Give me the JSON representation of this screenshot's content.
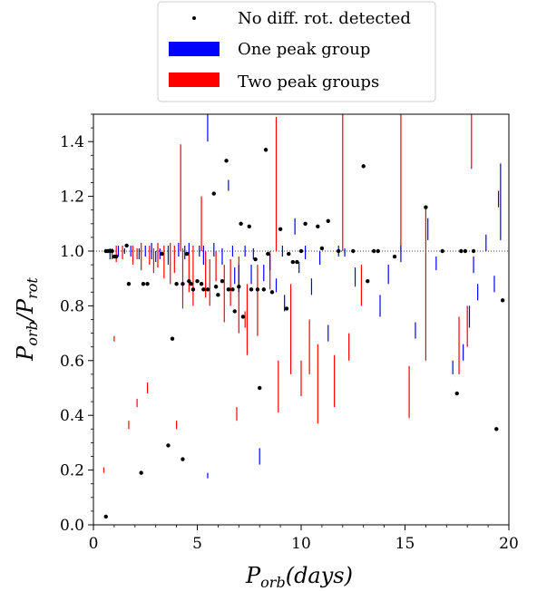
{
  "chart_data": {
    "type": "scatter",
    "title": "",
    "xlabel": "P_orb(days)",
    "ylabel": "P_orb/P_rot",
    "xlabel_parts": {
      "main": "P",
      "sub": "orb",
      "rest": "(days)"
    },
    "ylabel_parts": {
      "n_main": "P",
      "n_sub": "orb",
      "slash": "/",
      "d_main": "P",
      "d_sub": "rot"
    },
    "xlim": [
      0,
      20
    ],
    "ylim": [
      0,
      1.5
    ],
    "xticks": [
      0,
      5,
      10,
      15,
      20
    ],
    "xtick_labels": [
      "0",
      "5",
      "10",
      "15",
      "20"
    ],
    "yticks": [
      0.0,
      0.2,
      0.4,
      0.6,
      0.8,
      1.0,
      1.2,
      1.4
    ],
    "ytick_labels": [
      "0.0",
      "0.2",
      "0.4",
      "0.6",
      "0.8",
      "1.0",
      "1.2",
      "1.4"
    ],
    "reference_line_y": 1.0,
    "grid": false,
    "legend_position": "top-center",
    "colors": {
      "no_diff": "#000000",
      "one_peak": "#0000ff",
      "two_peak": "#ff0000"
    },
    "series": [
      {
        "name": "No diff. rot. detected",
        "kind": "points",
        "points": [
          [
            0.6,
            0.03
          ],
          [
            0.6,
            1.0
          ],
          [
            0.7,
            1.0
          ],
          [
            0.8,
            1.0
          ],
          [
            0.9,
            1.0
          ],
          [
            1.0,
            0.98
          ],
          [
            1.1,
            0.98
          ],
          [
            1.6,
            1.02
          ],
          [
            1.7,
            0.88
          ],
          [
            2.3,
            0.19
          ],
          [
            2.4,
            0.88
          ],
          [
            2.6,
            0.88
          ],
          [
            3.3,
            0.99
          ],
          [
            3.6,
            0.29
          ],
          [
            3.8,
            0.68
          ],
          [
            4.0,
            0.88
          ],
          [
            4.3,
            0.24
          ],
          [
            4.3,
            0.88
          ],
          [
            4.5,
            0.99
          ],
          [
            4.6,
            0.89
          ],
          [
            4.7,
            0.88
          ],
          [
            4.8,
            0.86
          ],
          [
            5.0,
            0.89
          ],
          [
            5.2,
            0.88
          ],
          [
            5.3,
            0.86
          ],
          [
            5.5,
            0.86
          ],
          [
            5.8,
            1.21
          ],
          [
            5.9,
            0.87
          ],
          [
            6.0,
            0.84
          ],
          [
            6.2,
            0.89
          ],
          [
            6.4,
            1.33
          ],
          [
            6.5,
            0.86
          ],
          [
            6.7,
            0.86
          ],
          [
            6.8,
            0.78
          ],
          [
            7.0,
            0.87
          ],
          [
            7.1,
            1.1
          ],
          [
            7.2,
            0.76
          ],
          [
            7.5,
            1.09
          ],
          [
            7.6,
            0.86
          ],
          [
            7.8,
            0.97
          ],
          [
            7.9,
            0.86
          ],
          [
            8.0,
            0.5
          ],
          [
            8.2,
            0.86
          ],
          [
            8.3,
            1.37
          ],
          [
            8.4,
            0.99
          ],
          [
            8.6,
            0.85
          ],
          [
            9.0,
            1.08
          ],
          [
            9.3,
            0.79
          ],
          [
            9.4,
            0.99
          ],
          [
            9.6,
            0.96
          ],
          [
            9.8,
            0.96
          ],
          [
            10.0,
            1.0
          ],
          [
            10.2,
            1.1
          ],
          [
            10.8,
            1.09
          ],
          [
            11.0,
            1.01
          ],
          [
            11.3,
            1.11
          ],
          [
            11.8,
            1.0
          ],
          [
            12.5,
            1.0
          ],
          [
            13.0,
            1.31
          ],
          [
            13.2,
            0.89
          ],
          [
            13.5,
            1.0
          ],
          [
            13.7,
            1.0
          ],
          [
            14.5,
            0.98
          ],
          [
            16.0,
            1.16
          ],
          [
            16.8,
            1.0
          ],
          [
            17.5,
            0.48
          ],
          [
            17.7,
            1.0
          ],
          [
            17.9,
            1.0
          ],
          [
            18.3,
            1.0
          ],
          [
            19.4,
            0.35
          ],
          [
            19.7,
            0.82
          ]
        ]
      },
      {
        "name": "One peak group",
        "kind": "vertical_segments",
        "segments": [
          [
            0.8,
            0.97,
            1.01
          ],
          [
            1.2,
            0.98,
            1.02
          ],
          [
            1.5,
            0.99,
            1.01
          ],
          [
            1.8,
            0.98,
            1.02
          ],
          [
            2.2,
            0.97,
            1.01
          ],
          [
            2.5,
            0.98,
            1.02
          ],
          [
            2.8,
            0.97,
            1.03
          ],
          [
            3.0,
            0.96,
            1.0
          ],
          [
            3.2,
            0.97,
            1.01
          ],
          [
            3.6,
            0.95,
            1.02
          ],
          [
            4.1,
            0.98,
            1.03
          ],
          [
            4.4,
            0.97,
            1.02
          ],
          [
            4.6,
            0.99,
            1.03
          ],
          [
            5.1,
            0.98,
            1.02
          ],
          [
            5.3,
            0.95,
            1.02
          ],
          [
            5.5,
            1.4,
            1.5
          ],
          [
            5.5,
            0.17,
            0.19
          ],
          [
            5.8,
            0.98,
            1.03
          ],
          [
            6.2,
            0.95,
            1.01
          ],
          [
            6.5,
            1.22,
            1.26
          ],
          [
            6.7,
            0.98,
            1.02
          ],
          [
            6.8,
            0.88,
            0.94
          ],
          [
            7.0,
            0.85,
            0.95
          ],
          [
            7.3,
            0.98,
            1.02
          ],
          [
            7.6,
            0.88,
            0.95
          ],
          [
            7.7,
            0.97,
            1.01
          ],
          [
            8.0,
            0.22,
            0.28
          ],
          [
            8.2,
            0.89,
            0.95
          ],
          [
            8.5,
            0.93,
            0.99
          ],
          [
            8.8,
            0.85,
            0.9
          ],
          [
            9.1,
            0.98,
            1.02
          ],
          [
            9.2,
            0.78,
            0.84
          ],
          [
            9.7,
            1.06,
            1.12
          ],
          [
            9.9,
            0.92,
            0.96
          ],
          [
            10.2,
            0.97,
            1.02
          ],
          [
            10.5,
            0.84,
            0.9
          ],
          [
            10.9,
            0.95,
            1.0
          ],
          [
            11.3,
            0.67,
            0.73
          ],
          [
            11.8,
            0.98,
            1.02
          ],
          [
            12.1,
            0.98,
            1.01
          ],
          [
            12.6,
            0.87,
            0.94
          ],
          [
            13.8,
            0.76,
            0.84
          ],
          [
            14.2,
            0.88,
            0.95
          ],
          [
            14.8,
            0.96,
            1.02
          ],
          [
            15.5,
            0.68,
            0.74
          ],
          [
            16.1,
            1.04,
            1.12
          ],
          [
            16.5,
            0.93,
            0.98
          ],
          [
            17.3,
            0.55,
            0.6
          ],
          [
            17.8,
            0.6,
            0.66
          ],
          [
            18.1,
            0.72,
            0.8
          ],
          [
            18.3,
            0.92,
            0.98
          ],
          [
            18.5,
            0.82,
            0.88
          ],
          [
            18.9,
            1.0,
            1.06
          ],
          [
            19.3,
            0.85,
            0.91
          ],
          [
            19.5,
            1.16,
            1.22
          ],
          [
            19.6,
            1.04,
            1.32
          ]
        ]
      },
      {
        "name": "Two peak groups",
        "kind": "vertical_segments",
        "segments": [
          [
            0.9,
            0.97,
            1.01
          ],
          [
            1.1,
            0.96,
            1.02
          ],
          [
            1.4,
            0.97,
            1.02
          ],
          [
            1.9,
            0.95,
            1.02
          ],
          [
            2.1,
            0.97,
            1.01
          ],
          [
            2.3,
            0.93,
            1.03
          ],
          [
            2.7,
            0.95,
            1.02
          ],
          [
            2.9,
            0.92,
            1.01
          ],
          [
            3.1,
            0.94,
            1.03
          ],
          [
            3.4,
            0.9,
            1.02
          ],
          [
            3.7,
            0.88,
            1.03
          ],
          [
            3.9,
            0.92,
            1.02
          ],
          [
            4.2,
            1.0,
            1.39
          ],
          [
            4.3,
            0.79,
            1.01
          ],
          [
            4.6,
            0.85,
            1.0
          ],
          [
            4.8,
            0.8,
            1.02
          ],
          [
            5.2,
            1.0,
            1.2
          ],
          [
            5.4,
            0.83,
            1.0
          ],
          [
            5.6,
            0.8,
            0.97
          ],
          [
            5.9,
            0.89,
            1.0
          ],
          [
            6.3,
            0.74,
            0.95
          ],
          [
            6.6,
            0.8,
            0.97
          ],
          [
            7.0,
            0.7,
            0.98
          ],
          [
            7.4,
            0.62,
            0.88
          ],
          [
            7.9,
            0.69,
            0.95
          ],
          [
            8.5,
            0.86,
            1.0
          ],
          [
            8.8,
            1.0,
            1.49
          ],
          [
            8.9,
            0.41,
            0.6
          ],
          [
            9.5,
            0.55,
            0.88
          ],
          [
            10.0,
            0.47,
            0.6
          ],
          [
            10.4,
            0.55,
            0.75
          ],
          [
            10.8,
            0.37,
            0.66
          ],
          [
            11.6,
            0.43,
            0.62
          ],
          [
            12.0,
            1.0,
            1.5
          ],
          [
            12.3,
            0.6,
            0.7
          ],
          [
            12.9,
            0.8,
            0.95
          ],
          [
            14.8,
            1.0,
            1.5
          ],
          [
            15.2,
            0.39,
            0.58
          ],
          [
            16.0,
            0.6,
            1.16
          ],
          [
            17.6,
            0.55,
            0.76
          ],
          [
            18.0,
            0.65,
            0.8
          ],
          [
            18.2,
            1.3,
            1.5
          ],
          [
            0.5,
            0.19,
            0.21
          ],
          [
            1.0,
            0.67,
            0.69
          ],
          [
            1.7,
            0.35,
            0.38
          ],
          [
            2.1,
            0.43,
            0.46
          ],
          [
            2.6,
            0.48,
            0.52
          ],
          [
            4.0,
            0.35,
            0.38
          ],
          [
            6.9,
            0.38,
            0.43
          ],
          [
            7.3,
            0.72,
            0.78
          ]
        ]
      }
    ]
  }
}
